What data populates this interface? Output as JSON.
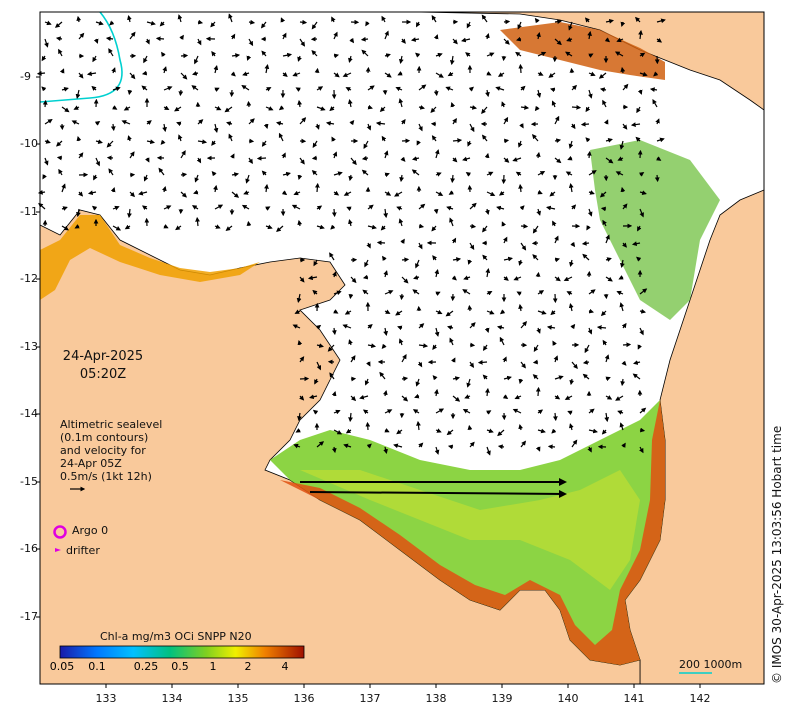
{
  "map": {
    "date": "24-Apr-2025",
    "time": "05:20Z",
    "altimetry_lines": [
      "Altimetric sealevel",
      "(0.1m contours)",
      "and velocity for",
      "24-Apr 05Z",
      "0.5m/s (1kt 12h)"
    ],
    "legend": {
      "argo": "Argo 0",
      "drifter": "drifter"
    },
    "colorbar": {
      "title": "Chl-a mg/m3 OCi SNPP N20",
      "ticks": [
        "0.05",
        "0.1",
        "0.25",
        "0.5",
        "1",
        "2",
        "4"
      ]
    },
    "scale_label": "200  1000m",
    "credit": "© IMOS 30-Apr-2025 13:03:56 Hobart time",
    "lat_labels": [
      "-9",
      "-10",
      "-11",
      "-12",
      "-13",
      "-14",
      "-15",
      "-16",
      "-17"
    ],
    "lon_labels": [
      "133",
      "134",
      "135",
      "136",
      "137",
      "138",
      "139",
      "140",
      "141",
      "142"
    ],
    "colors": {
      "land": "#f9c99b",
      "sea": "#ffffff",
      "argo": "#e000e0",
      "contour": "#00d0d0"
    }
  }
}
